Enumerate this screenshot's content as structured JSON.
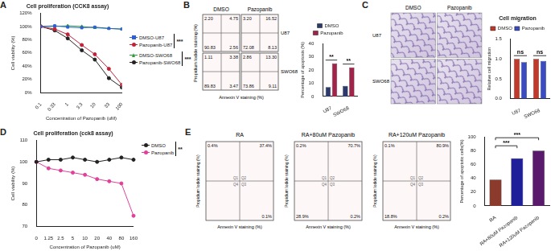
{
  "chart_data": [
    {
      "panel": "A",
      "type": "line",
      "title": "Cell proliferation (CCK8 assay)",
      "xlabel": "Concentration of Pazopanib (uM)",
      "ylabel": "Cell viability (%)",
      "log": "x",
      "x": [
        0.1,
        0.33,
        1,
        3.3,
        10,
        33,
        100
      ],
      "xlim": [
        0.1,
        100
      ],
      "xticks": [
        0.1,
        0.33,
        1,
        3.3,
        10,
        33,
        100
      ],
      "ylim": [
        0,
        120
      ],
      "yticks": [
        {
          "value": 0,
          "label": "0%"
        },
        {
          "value": 20,
          "label": "20%"
        },
        {
          "value": 40,
          "label": "40%"
        },
        {
          "value": 60,
          "label": "60%"
        },
        {
          "value": 80,
          "label": "80%"
        },
        {
          "value": 100,
          "label": "100%"
        },
        {
          "value": 120,
          "label": "120%"
        }
      ],
      "grid": false,
      "legend": "right",
      "series": [
        {
          "name": "DMSO-U87",
          "color": "#2f5fd0",
          "marker": "square",
          "values": [
            100,
            101,
            99,
            98,
            99,
            97,
            96
          ]
        },
        {
          "name": "Pazopanib-U87",
          "color": "#c0223a",
          "marker": "circle",
          "values": [
            100,
            96,
            88,
            72,
            58,
            36,
            12
          ]
        },
        {
          "name": "DMSO-SWO68",
          "color": "#2e9a3e",
          "marker": "triangle",
          "values": [
            100,
            100,
            101,
            100,
            98,
            97,
            96
          ]
        },
        {
          "name": "Pazopanib-SWO68",
          "color": "#222222",
          "marker": "circle",
          "values": [
            100,
            94,
            82,
            64,
            50,
            22,
            8
          ]
        }
      ],
      "annotations": [
        "***",
        "***"
      ]
    },
    {
      "panel": "B",
      "type": "flow",
      "xlabel": "Annexin V staining (%)",
      "ylabel": "Propidium Iodide staining (%)",
      "columns": [
        "DMSO",
        "Pazopanib"
      ],
      "rows": [
        "U87",
        "SWO68"
      ],
      "plots": [
        {
          "quadrants": [
            {
              "value": "2.20"
            },
            {
              "value": "4.75"
            },
            {
              "value": "2.56"
            },
            {
              "value": "90.83"
            }
          ]
        },
        {
          "quadrants": [
            {
              "value": "3.20"
            },
            {
              "value": "16.52"
            },
            {
              "value": "8.13"
            },
            {
              "value": "72.08"
            }
          ]
        },
        {
          "quadrants": [
            {
              "value": "1.11"
            },
            {
              "value": "3.38"
            },
            {
              "value": "3.47"
            },
            {
              "value": "89.83"
            }
          ]
        },
        {
          "quadrants": [
            {
              "value": "2.86"
            },
            {
              "value": "13.30"
            },
            {
              "value": "9.11"
            },
            {
              "value": "73.86"
            }
          ]
        }
      ]
    },
    {
      "panel": "B",
      "type": "bar",
      "ylabel": "Percentage of apoptosis (%)",
      "categories": [
        "U87",
        "SWO68"
      ],
      "series": [
        {
          "name": "DMSO",
          "color": "#2b3a6b",
          "values": [
            7,
            8
          ]
        },
        {
          "name": "Pazopanib",
          "color": "#a0244a",
          "values": [
            25,
            22
          ]
        }
      ],
      "ylim": [
        0,
        40
      ],
      "yticks": [
        0,
        10,
        20,
        30,
        40
      ],
      "grid": false,
      "legend": "top",
      "annotations": [
        "**",
        "**"
      ]
    },
    {
      "panel": "C",
      "type": "image",
      "columns": [
        "DMSO",
        "Pazopanib"
      ],
      "rows": [
        "U87",
        "SWO68"
      ]
    },
    {
      "panel": "C",
      "type": "bar",
      "title": "Cell migration",
      "ylabel": "Relative cell migration",
      "categories": [
        "U87",
        "SWO68"
      ],
      "series": [
        {
          "name": "DMSO",
          "color": "#c0392b",
          "values": [
            1.0,
            1.0
          ]
        },
        {
          "name": "Pazopanib",
          "color": "#3b4cc0",
          "values": [
            0.92,
            0.95
          ]
        }
      ],
      "ylim": [
        0,
        1.5
      ],
      "yticks": [
        {
          "value": 0,
          "label": "0.0"
        },
        0.5,
        {
          "value": 1,
          "label": "1.0"
        },
        1.5
      ],
      "grid": false,
      "legend": "top",
      "annotations": [
        "ns",
        "ns"
      ]
    },
    {
      "panel": "D",
      "type": "line",
      "title": "Cell proliferation (cck8 assay)",
      "xlabel": "Concentration of Pazopanib (uM)",
      "ylabel": "Cell viability (%)",
      "categories": [
        "0",
        "1.25",
        "2.5",
        "5",
        "10",
        "20",
        "40",
        "80",
        "160"
      ],
      "ylim": [
        70,
        110
      ],
      "yticks": [
        70,
        80,
        90,
        100,
        110
      ],
      "grid": false,
      "legend": "right",
      "series": [
        {
          "name": "DMSO",
          "color": "#222222",
          "marker": "circle",
          "values": [
            100,
            101,
            101,
            102,
            101,
            100,
            101,
            102,
            101
          ]
        },
        {
          "name": "Pazopanib",
          "color": "#e0409a",
          "marker": "circle",
          "values": [
            100,
            97,
            96,
            95,
            94,
            92,
            91,
            90,
            75
          ]
        }
      ],
      "annotations": [
        "**"
      ]
    },
    {
      "panel": "E",
      "type": "flow",
      "xlabel": "Annexin V staining (%)",
      "ylabel": "Propidium Iodide staining (%)",
      "plots": [
        {
          "title": "RA",
          "quadrants": [
            {
              "name": "Q1",
              "value": "0.4%"
            },
            {
              "name": "Q2",
              "value": "37.4%"
            },
            {
              "name": "Q3",
              "value": "0.1%"
            },
            {
              "name": "Q4",
              "value": null
            }
          ]
        },
        {
          "title": "RA+80uM Pazopanib",
          "quadrants": [
            {
              "name": "Q1",
              "value": "0.2%"
            },
            {
              "name": "Q2",
              "value": "70.7%"
            },
            {
              "name": "Q3",
              "value": "0.2%"
            },
            {
              "name": "Q4",
              "value": "28.9%"
            }
          ]
        },
        {
          "title": "RA+120uM Pazopanib",
          "quadrants": [
            {
              "name": "Q1",
              "value": "0.1%"
            },
            {
              "name": "Q2",
              "value": "80.9%"
            },
            {
              "name": "Q3",
              "value": "0.2%"
            },
            {
              "name": "Q4",
              "value": "18.8%"
            }
          ]
        }
      ]
    },
    {
      "panel": "E",
      "type": "bar",
      "ylabel": "Percentage of apoptotic cells(%)",
      "categories": [
        "RA",
        "RA+80uM Pazopanib",
        "RA+120uM Pazopanib"
      ],
      "values": [
        38,
        69,
        80
      ],
      "colors": [
        "#8b3a2b",
        "#1f1f9a",
        "#5a1a6b"
      ],
      "ylim": [
        0,
        100
      ],
      "yticks": [
        0,
        20,
        40,
        60,
        80,
        100
      ],
      "grid": false,
      "annotations": [
        "***",
        "***"
      ]
    }
  ]
}
